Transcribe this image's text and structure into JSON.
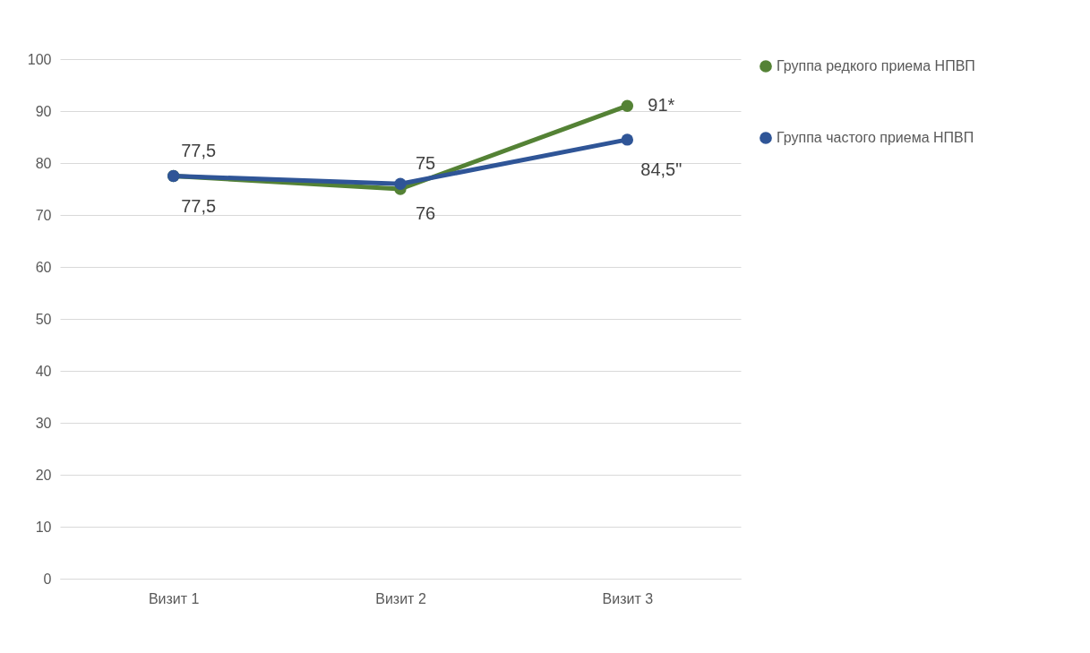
{
  "chart_data": {
    "type": "line",
    "categories": [
      "Визит 1",
      "Визит 2",
      "Визит 3"
    ],
    "series": [
      {
        "name": "Группа редкого приема НПВП",
        "color": "#548235",
        "values": [
          77.5,
          75,
          91
        ],
        "value_labels": [
          "77,5",
          "75",
          "91*"
        ]
      },
      {
        "name": "Группа частого приема НПВП",
        "color": "#2f5597",
        "values": [
          77.5,
          76,
          84.5
        ],
        "value_labels": [
          "77,5",
          "76",
          "84,5\""
        ]
      }
    ],
    "ylim": [
      0,
      100
    ],
    "yticks": [
      0,
      10,
      20,
      30,
      40,
      50,
      60,
      70,
      80,
      90,
      100
    ],
    "grid": "y",
    "legend": "right",
    "marker": "circle"
  }
}
